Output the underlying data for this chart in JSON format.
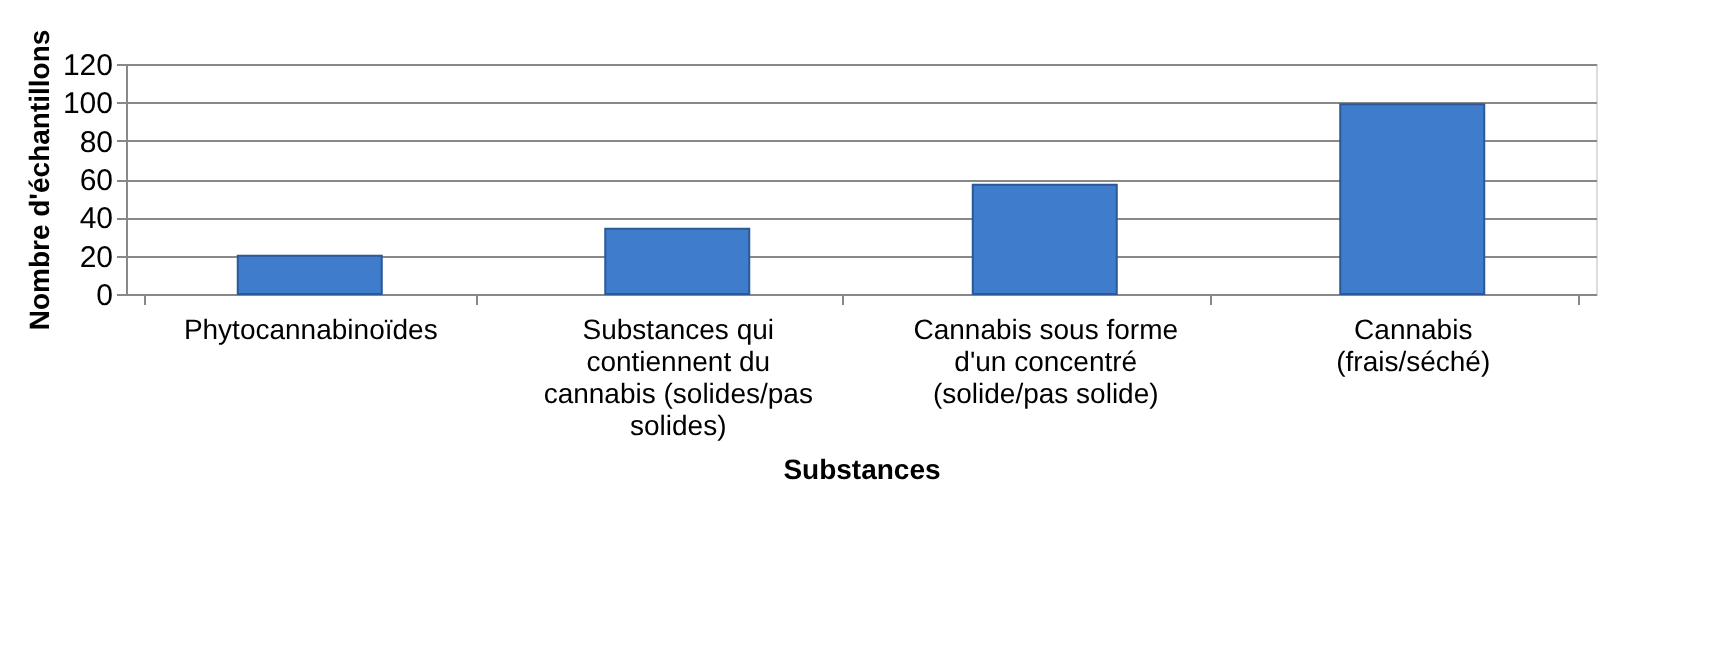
{
  "chart_data": {
    "type": "bar",
    "xlabel": "Substances",
    "ylabel": "Nombre d'échantillons",
    "categories": [
      "Phytocannabinoïdes",
      "Substances qui contiennent du cannabis (solides/pas solides)",
      "Cannabis sous forme d'un concentré (solide/pas solide)",
      "Cannabis (frais/séché)"
    ],
    "values": [
      20,
      34,
      57,
      99
    ],
    "color": "#3f7ccc",
    "ylim": [
      0,
      120
    ],
    "yticks": [
      0,
      20,
      40,
      60,
      80,
      100,
      120
    ],
    "grid": "y"
  }
}
